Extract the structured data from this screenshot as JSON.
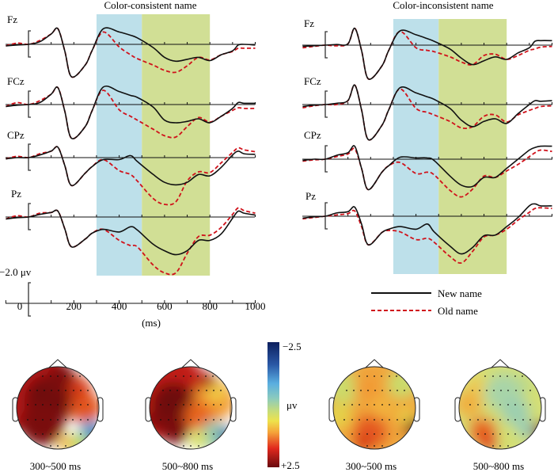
{
  "chart_data": {
    "type": "line",
    "description": "ERP waveforms and scalp topographies",
    "panels": [
      {
        "title": "Color-consistent name",
        "shaded_windows": [
          {
            "from_ms": 300,
            "to_ms": 500,
            "color": "#bde0ea"
          },
          {
            "from_ms": 500,
            "to_ms": 800,
            "color": "#d1df95"
          }
        ],
        "channels": [
          {
            "name": "Fz",
            "new": [
              0.25,
              0.1,
              0,
              -0.4,
              -1.6,
              -2.4,
              1.0,
              5.0,
              3.2,
              1.0,
              -2.4,
              -1.9,
              -1.4,
              -1.0,
              0.5,
              2.0,
              2.6,
              2.3,
              2.0,
              2.5,
              1.6,
              1.0,
              0.1,
              0.0,
              0.1
            ],
            "old": [
              0.25,
              -0.2,
              0,
              -0.6,
              -1.6,
              -2.4,
              1.0,
              5.0,
              3.2,
              1.0,
              -1.9,
              0.4,
              1.6,
              2.2,
              3.2,
              4.0,
              4.3,
              3.3,
              2.0,
              2.4,
              1.6,
              1.1,
              0.6,
              0.6,
              0.6
            ]
          },
          {
            "name": "FCz",
            "new": [
              0.3,
              0.1,
              0,
              -0.3,
              -1.6,
              -2.6,
              1.0,
              5.2,
              3.4,
              1.0,
              -2.7,
              -2.0,
              -1.4,
              -1.1,
              0.4,
              2.4,
              2.8,
              2.6,
              2.2,
              2.8,
              1.8,
              0.6,
              -0.3,
              -0.2,
              -0.2
            ],
            "old": [
              0.3,
              -0.3,
              0,
              -0.6,
              -1.6,
              -2.6,
              1.0,
              5.2,
              3.4,
              1.0,
              -2.2,
              0.8,
              1.8,
              2.4,
              3.8,
              4.8,
              5.0,
              3.4,
              2.0,
              2.7,
              1.8,
              0.9,
              0.5,
              0.6,
              0.6
            ]
          },
          {
            "name": "CPz",
            "new": [
              0.2,
              0,
              0,
              -0.4,
              -1.0,
              -1.6,
              1.2,
              4.3,
              2.4,
              1.4,
              0.3,
              0.3,
              -0.3,
              0.6,
              2.6,
              3.8,
              4.2,
              3.8,
              2.6,
              2.8,
              1.5,
              -0.4,
              -1.0,
              -0.6,
              -0.5
            ],
            "old": [
              0.2,
              -0.2,
              0,
              -0.6,
              -1.0,
              -1.6,
              1.2,
              4.3,
              2.4,
              1.4,
              0.3,
              2.0,
              2.6,
              3.6,
              6.3,
              7.2,
              6.8,
              3.6,
              2.2,
              2.3,
              0.8,
              -0.8,
              -1.5,
              -1.2,
              -0.9
            ]
          },
          {
            "name": "Pz",
            "new": [
              0.3,
              0.1,
              0,
              -0.4,
              -0.7,
              -0.9,
              1.8,
              4.6,
              3.4,
              2.5,
              1.9,
              2.3,
              1.5,
              2.0,
              4.2,
              5.2,
              5.8,
              5.2,
              3.6,
              3.6,
              2.6,
              0.2,
              -0.9,
              -0.6,
              -0.3
            ],
            "old": [
              0.3,
              -0.2,
              0,
              -0.6,
              -0.7,
              -0.9,
              1.8,
              4.6,
              3.4,
              2.5,
              1.9,
              3.6,
              4.4,
              4.6,
              7.4,
              8.6,
              8.6,
              5.6,
              3.0,
              2.8,
              1.6,
              -0.4,
              -1.4,
              -1.0,
              -0.6
            ]
          }
        ]
      },
      {
        "title": "Color-inconsistent name",
        "shaded_windows": [
          {
            "from_ms": 300,
            "to_ms": 500,
            "color": "#bde0ea"
          },
          {
            "from_ms": 500,
            "to_ms": 800,
            "color": "#d1df95"
          }
        ],
        "channels": [
          {
            "name": "Fz",
            "new": [
              0.2,
              0.1,
              0,
              -0.1,
              -0.2,
              -2.6,
              0.8,
              5.2,
              3.2,
              0.8,
              -2.2,
              -1.6,
              -1.0,
              -0.6,
              0.6,
              2.0,
              3.0,
              2.4,
              1.8,
              2.2,
              1.2,
              0.4,
              -0.6,
              -0.7,
              -0.7
            ],
            "old": [
              0.4,
              0.2,
              0,
              0.1,
              -0.2,
              -2.6,
              0.8,
              5.2,
              3.2,
              0.8,
              -2.1,
              0.4,
              0.8,
              1.0,
              1.8,
              2.6,
              3.0,
              1.6,
              1.4,
              2.2,
              1.6,
              0.8,
              0.6,
              0.3,
              0.2
            ]
          },
          {
            "name": "FCz",
            "new": [
              0.3,
              0.1,
              0,
              -0.2,
              -0.6,
              -3.0,
              0.8,
              5.4,
              3.2,
              0.8,
              -2.6,
              -1.8,
              -1.2,
              -0.8,
              0.6,
              2.4,
              3.4,
              2.6,
              2.2,
              2.9,
              1.4,
              0.0,
              -0.6,
              -0.5,
              -0.6
            ],
            "old": [
              0.5,
              0.2,
              0,
              0.0,
              -0.6,
              -3.0,
              0.8,
              5.4,
              3.2,
              0.8,
              -2.4,
              0.6,
              1.2,
              1.6,
              2.6,
              3.6,
              3.4,
              1.8,
              1.6,
              2.7,
              1.6,
              0.9,
              0.6,
              0.3,
              0.2
            ]
          },
          {
            "name": "CPz",
            "new": [
              0.2,
              0.0,
              0,
              -0.6,
              -1.0,
              -2.0,
              1.4,
              4.7,
              2.0,
              1.0,
              -0.3,
              -0.2,
              -0.2,
              0.2,
              2.6,
              4.0,
              4.2,
              2.8,
              2.8,
              1.4,
              0.0,
              -1.4,
              -1.8,
              -2.0,
              -2.0
            ],
            "old": [
              0.3,
              0.1,
              0,
              -0.4,
              -0.8,
              -1.6,
              1.4,
              4.7,
              2.0,
              1.0,
              0.5,
              2.2,
              2.0,
              2.4,
              4.8,
              5.8,
              4.6,
              2.6,
              2.8,
              1.8,
              0.8,
              -0.4,
              -1.0,
              -1.4,
              -1.2
            ]
          },
          {
            "name": "Pz",
            "new": [
              0.3,
              0.1,
              0,
              -0.5,
              -0.7,
              -1.4,
              1.2,
              4.4,
              2.5,
              2.0,
              1.6,
              2.0,
              1.2,
              2.4,
              4.6,
              5.8,
              4.8,
              3.0,
              2.9,
              1.6,
              0.2,
              -1.6,
              -1.9,
              -1.6,
              -1.6
            ],
            "old": [
              0.4,
              0.2,
              0,
              -0.2,
              -0.4,
              -0.8,
              1.6,
              4.4,
              2.5,
              2.2,
              2.4,
              3.6,
              3.4,
              4.0,
              6.2,
              7.2,
              5.4,
              3.2,
              2.9,
              2.0,
              0.6,
              -0.6,
              -1.2,
              -1.3,
              -1.2
            ]
          }
        ]
      }
    ],
    "time_ms": [
      -100,
      -50,
      0,
      50,
      100,
      130,
      160,
      190,
      250,
      280,
      330,
      400,
      450,
      480,
      550,
      600,
      650,
      700,
      750,
      800,
      850,
      900,
      925,
      950,
      1000
    ],
    "xaxis": {
      "label": "(ms)",
      "ticks": [
        0,
        200,
        400,
        600,
        800,
        1000
      ],
      "xlim": [
        -100,
        1000
      ]
    },
    "scale_bar": {
      "label": "−2.0 μv",
      "value_uv": -2.0
    },
    "polarity": "negative up",
    "legend": [
      {
        "label": "New name",
        "style": "solid",
        "color": "#111111"
      },
      {
        "label": "Old name",
        "style": "dashed",
        "color": "#d0121b"
      }
    ],
    "legend_position": "below right panel",
    "topomaps": [
      {
        "condition": "Color-consistent name",
        "window": "300~500 ms",
        "mean_uv": 2.0
      },
      {
        "condition": "Color-consistent name",
        "window": "500~800 ms",
        "mean_uv": 1.6
      },
      {
        "condition": "Color-inconsistent name",
        "window": "300~500 ms",
        "mean_uv": 0.8
      },
      {
        "condition": "Color-inconsistent name",
        "window": "500~800 ms",
        "mean_uv": 0.2
      }
    ],
    "colorbar": {
      "min_label": "−2.5",
      "max_label": "+2.5",
      "unit": "μv",
      "range": [
        -2.5,
        2.5
      ]
    }
  }
}
